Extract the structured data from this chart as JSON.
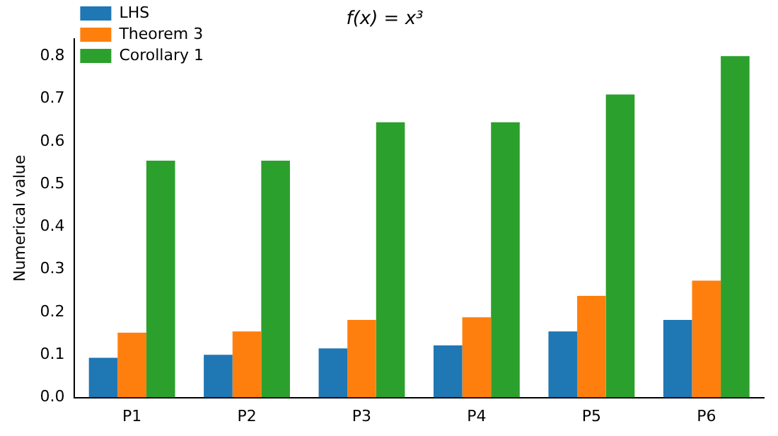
{
  "chart_data": {
    "type": "bar",
    "title": "f(x) = x³",
    "ylabel": "Numerical value",
    "categories": [
      "P1",
      "P2",
      "P3",
      "P4",
      "P5",
      "P6"
    ],
    "series": [
      {
        "name": "LHS",
        "color": "#1f77b4",
        "values": [
          0.093,
          0.1,
          0.115,
          0.122,
          0.155,
          0.182
        ]
      },
      {
        "name": "Theorem 3",
        "color": "#ff7f0e",
        "values": [
          0.152,
          0.155,
          0.182,
          0.188,
          0.238,
          0.274
        ]
      },
      {
        "name": "Corollary 1",
        "color": "#2ca02c",
        "values": [
          0.555,
          0.555,
          0.645,
          0.645,
          0.71,
          0.8
        ]
      }
    ],
    "ylim": [
      0,
      0.84
    ],
    "yticks": [
      {
        "value": 0,
        "label": "0.0"
      },
      {
        "value": 0.1,
        "label": "0.1"
      },
      {
        "value": 0.2,
        "label": "0.2"
      },
      {
        "value": 0.3,
        "label": "0.3"
      },
      {
        "value": 0.4,
        "label": "0.4"
      },
      {
        "value": 0.5,
        "label": "0.5"
      },
      {
        "value": 0.6,
        "label": "0.6"
      },
      {
        "value": 0.7,
        "label": "0.7"
      },
      {
        "value": 0.8,
        "label": "0.8"
      }
    ],
    "grid": false,
    "legend": "top left"
  }
}
